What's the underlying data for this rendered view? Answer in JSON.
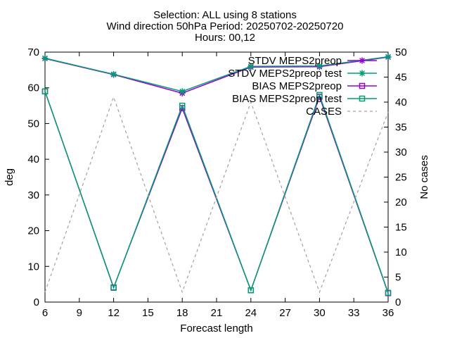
{
  "chart_data": {
    "type": "line",
    "title_lines": [
      "Selection: ALL using     8 stations",
      "Wind direction 50hPa   Period: 20250702-20250720",
      "Hours: 00,12"
    ],
    "xlabel": "Forecast length",
    "ylabel": "deg",
    "y2label": "No cases",
    "x": [
      6,
      12,
      18,
      24,
      30,
      36
    ],
    "xlim": [
      6,
      36
    ],
    "xticks": [
      6,
      9,
      12,
      15,
      18,
      21,
      24,
      27,
      30,
      33,
      36
    ],
    "ylim": [
      0,
      70
    ],
    "yticks": [
      0,
      10,
      20,
      30,
      40,
      50,
      60,
      70
    ],
    "y2lim": [
      0,
      50
    ],
    "y2ticks": [
      0,
      5,
      10,
      15,
      20,
      25,
      30,
      35,
      40,
      45,
      50
    ],
    "grid": false,
    "legend_position": "top-right",
    "series": [
      {
        "name": "STDV MEPS2preop",
        "axis": "y",
        "color": "#9400d3",
        "marker": "star",
        "dash": false,
        "values": [
          68.2,
          63.7,
          58.5,
          65.8,
          65.9,
          68.6
        ]
      },
      {
        "name": "STDV MEPS2preop test",
        "axis": "y",
        "color": "#009e73",
        "marker": "star",
        "dash": false,
        "values": [
          68.3,
          63.8,
          59.0,
          66.0,
          66.1,
          68.7
        ]
      },
      {
        "name": "BIAS MEPS2preop",
        "axis": "y",
        "color": "#9400d3",
        "marker": "square",
        "dash": false,
        "values": [
          59.0,
          4.1,
          54.3,
          3.3,
          57.5,
          2.5
        ]
      },
      {
        "name": "BIAS MEPS2preop test",
        "axis": "y",
        "color": "#009e73",
        "marker": "square",
        "dash": false,
        "values": [
          59.0,
          4.0,
          55.0,
          3.3,
          58.0,
          2.6
        ]
      },
      {
        "name": "CASES",
        "axis": "y2",
        "color": "#a0a0a0",
        "marker": "none",
        "dash": true,
        "values": [
          2,
          41,
          2,
          40,
          2,
          38
        ]
      }
    ]
  }
}
